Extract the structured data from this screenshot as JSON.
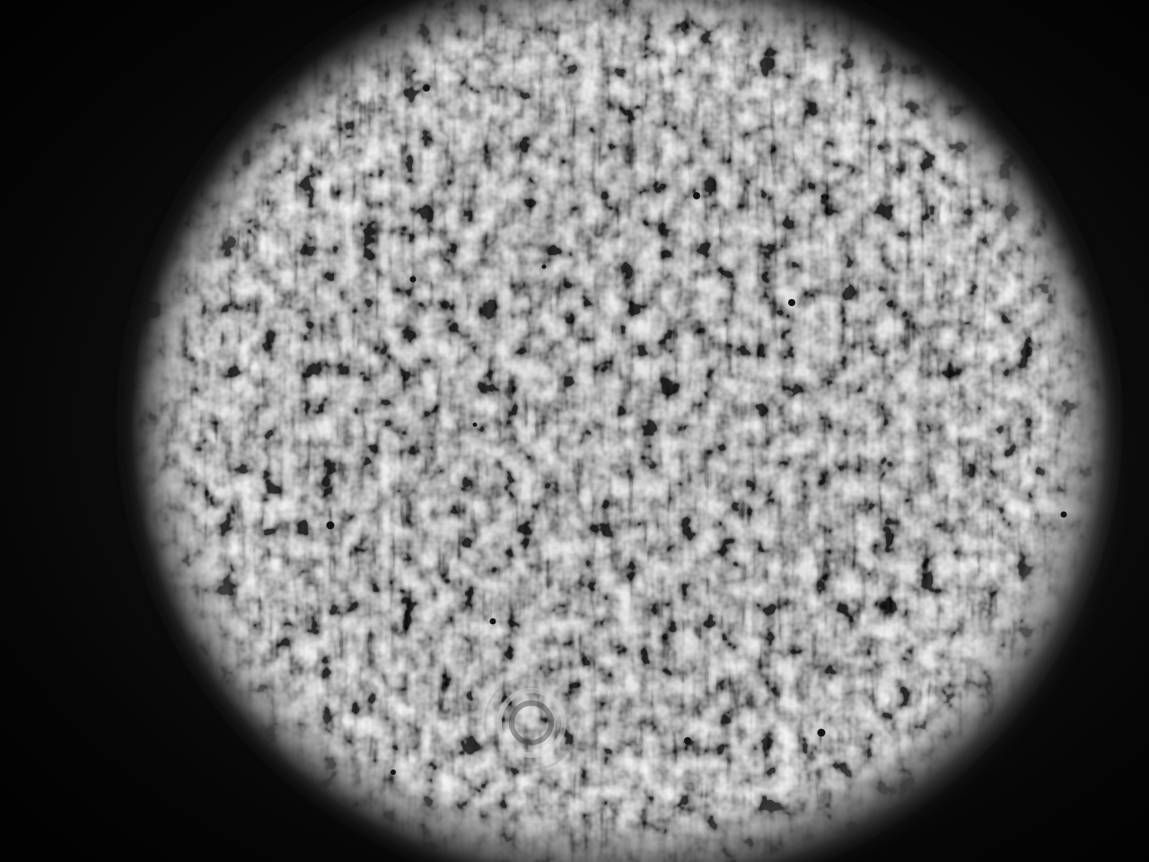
{
  "image": {
    "subject": "speckle-interference-beam-profile",
    "colors": {
      "background": "#0b0b0b",
      "halo": "#d8d8d8",
      "ring_bright": "#a9a9a9",
      "ring_dark": "#3d3d3d",
      "core": "#555555",
      "dust": "#141414"
    }
  }
}
